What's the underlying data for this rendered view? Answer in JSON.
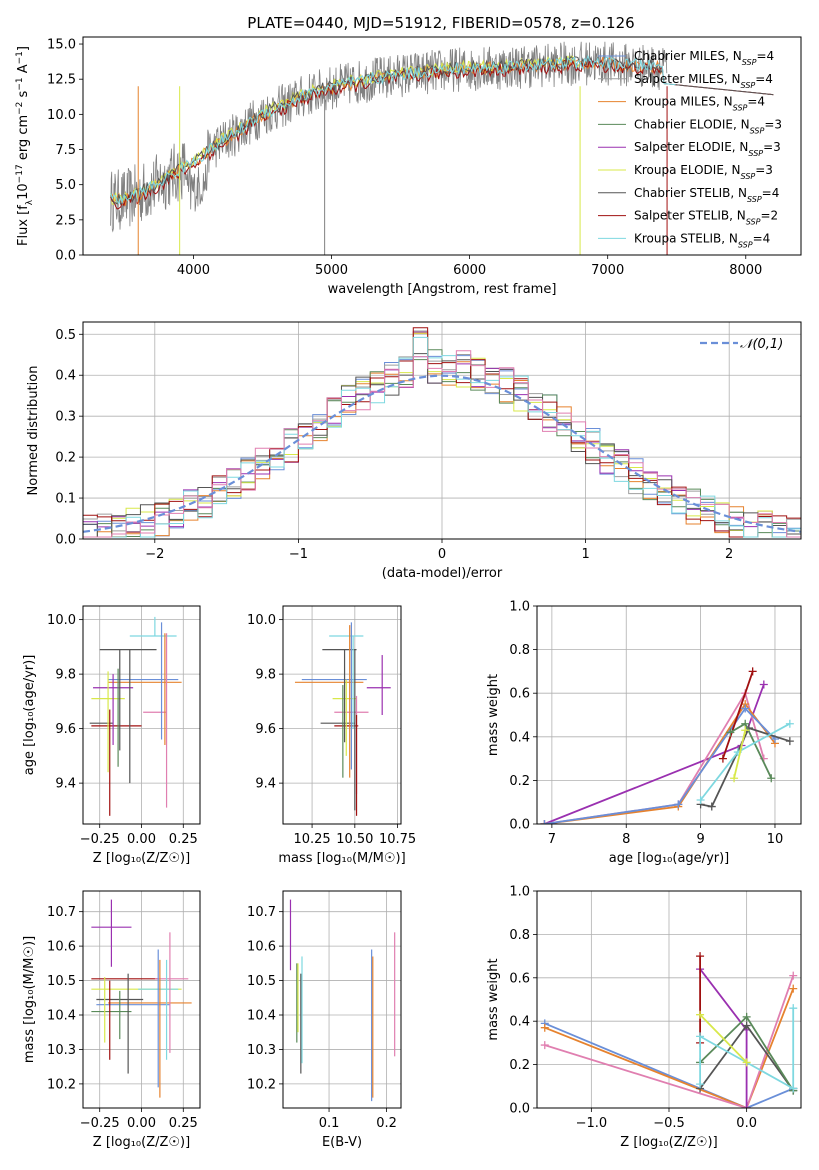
{
  "title": "PLATE=0440, MJD=51912, FIBERID=0578, z=0.126",
  "colors": {
    "chabrier_miles": "#6a8fd8",
    "salpeter_miles": "#9e9e9e",
    "kroupa_miles": "#e6822e",
    "chabrier_elodie": "#5a8a5a",
    "salpeter_elodie": "#9a30b0",
    "kroupa_elodie": "#d8e84a",
    "chabrier_stelib": "#555555",
    "salpeter_stelib": "#a01010",
    "kroupa_stelib": "#7ed8e0",
    "pink": "#e07fb0",
    "normal": "#6a8fd8"
  },
  "chart_data": [
    {
      "type": "line",
      "id": "spectrum",
      "xlabel": "wavelength [Angstrom, rest frame]",
      "ylabel": "Flux [f$_\\lambda$10$^{-17}$ erg cm$^{-2}$ s$^{-1}$ A$^{-1}$]",
      "ylabel_parts": [
        "Flux [f",
        "λ",
        "10",
        "−17",
        " erg cm",
        "−2",
        " s",
        "−1",
        " A",
        "−1",
        "]"
      ],
      "xlim": [
        3200,
        8400
      ],
      "ylim": [
        0,
        15.5
      ],
      "xticks": [
        "4000",
        "5000",
        "6000",
        "7000",
        "8000"
      ],
      "yticks": [
        "0.0",
        "2.5",
        "5.0",
        "7.5",
        "10.0",
        "12.5",
        "15.0"
      ],
      "legend_position": "right",
      "legend": [
        {
          "name": "Chabrier MILES, N",
          "sub": "SSP",
          "tail": "=4",
          "color": "#6a8fd8"
        },
        {
          "name": "Salpeter MILES, N",
          "sub": "SSP",
          "tail": "=4",
          "color": "#9e9e9e"
        },
        {
          "name": "Kroupa MILES, N",
          "sub": "SSP",
          "tail": "=4",
          "color": "#e6822e"
        },
        {
          "name": "Chabrier ELODIE, N",
          "sub": "SSP",
          "tail": "=3",
          "color": "#5a8a5a"
        },
        {
          "name": "Salpeter ELODIE, N",
          "sub": "SSP",
          "tail": "=3",
          "color": "#9a30b0"
        },
        {
          "name": "Kroupa ELODIE, N",
          "sub": "SSP",
          "tail": "=3",
          "color": "#d8e84a"
        },
        {
          "name": "Chabrier STELIB, N",
          "sub": "SSP",
          "tail": "=4",
          "color": "#555555"
        },
        {
          "name": "Salpeter STELIB, N",
          "sub": "SSP",
          "tail": "=2",
          "color": "#a01010"
        },
        {
          "name": "Kroupa STELIB, N",
          "sub": "SSP",
          "tail": "=4",
          "color": "#7ed8e0"
        }
      ],
      "model_x": [
        3400,
        3500,
        3600,
        3700,
        3800,
        3900,
        4000,
        4100,
        4200,
        4300,
        4400,
        4500,
        4600,
        4700,
        4800,
        4900,
        5000,
        5100,
        5200,
        5300,
        5400,
        5500,
        5600,
        5700,
        5800,
        5900,
        6000,
        6100,
        6200,
        6300,
        6400,
        6500,
        6600,
        6700,
        6800,
        6900,
        7000,
        7100,
        7200,
        7300,
        7400
      ],
      "model_y": [
        3.9,
        3.9,
        4.3,
        4.8,
        5.4,
        6.0,
        6.6,
        7.3,
        8.0,
        8.6,
        9.3,
        10.0,
        10.4,
        10.8,
        11.3,
        11.6,
        11.9,
        12.1,
        12.3,
        12.5,
        12.6,
        12.8,
        12.9,
        13.0,
        13.1,
        13.2,
        13.2,
        13.3,
        13.3,
        13.4,
        13.4,
        13.5,
        13.5,
        13.6,
        13.6,
        13.7,
        13.6,
        13.5,
        13.5,
        13.4,
        13.3
      ]
    },
    {
      "type": "histogram",
      "id": "residuals",
      "xlabel": "(data-model)/error",
      "ylabel": "Normed distribution",
      "xlim": [
        -2.5,
        2.5
      ],
      "ylim": [
        0,
        0.53
      ],
      "xticks": [
        "−2",
        "−1",
        "0",
        "1",
        "2"
      ],
      "yticks": [
        "0.0",
        "0.1",
        "0.2",
        "0.3",
        "0.4",
        "0.5"
      ],
      "legend": "𝒩(0,1)",
      "legend_position": "top-right",
      "bin_edges_start": -2.5,
      "bin_width": 0.1
    },
    {
      "type": "errorbar",
      "id": "age_vs_z",
      "xlabel": "Z [log₁₀(Z/Z☉)]",
      "ylabel": "age  [log₁₀(age/yr)]",
      "xlim": [
        -0.35,
        0.35
      ],
      "ylim": [
        9.25,
        10.05
      ],
      "xticks": [
        "−0.25",
        "0.00",
        "0.25"
      ],
      "yticks": [
        "9.4",
        "9.6",
        "9.8",
        "10.0"
      ],
      "points": [
        {
          "x": 0.07,
          "xerr": 0.14,
          "y": 9.94,
          "yerr": 0.0,
          "color": "#7ed8e0"
        },
        {
          "x": -0.08,
          "xerr": 0.17,
          "y": 9.89,
          "yerr": 0.0,
          "color": "#555555"
        },
        {
          "x": 0.01,
          "xerr": 0.21,
          "y": 9.78,
          "yerr": 0.0,
          "color": "#6a8fd8"
        },
        {
          "x": 0.02,
          "xerr": 0.22,
          "y": 9.77,
          "yerr": 0.0,
          "color": "#e6822e"
        },
        {
          "x": -0.17,
          "xerr": 0.12,
          "y": 9.75,
          "yerr": 0.0,
          "color": "#9a30b0"
        },
        {
          "x": -0.2,
          "xerr": 0.1,
          "y": 9.71,
          "yerr": 0.0,
          "color": "#d8e84a"
        },
        {
          "x": 0.08,
          "xerr": 0.07,
          "y": 9.66,
          "yerr": 0.0,
          "color": "#e07fb0"
        },
        {
          "x": -0.24,
          "xerr": 0.07,
          "y": 9.62,
          "yerr": 0.0,
          "color": "#555555"
        },
        {
          "x": -0.15,
          "xerr": 0.15,
          "y": 9.61,
          "yerr": 0.0,
          "color": "#a01010"
        }
      ],
      "vbars": [
        {
          "x": 0.08,
          "y0": 9.94,
          "y1": 10.01,
          "color": "#7ed8e0"
        },
        {
          "x": -0.13,
          "y0": 9.52,
          "y1": 9.89,
          "color": "#555555"
        },
        {
          "x": 0.12,
          "y0": 9.56,
          "y1": 9.99,
          "color": "#6a8fd8"
        },
        {
          "x": 0.14,
          "y0": 9.54,
          "y1": 9.95,
          "color": "#e6822e"
        },
        {
          "x": -0.17,
          "y0": 9.54,
          "y1": 9.8,
          "color": "#9a30b0"
        },
        {
          "x": -0.2,
          "y0": 9.44,
          "y1": 9.81,
          "color": "#d8e84a"
        },
        {
          "x": 0.15,
          "y0": 9.31,
          "y1": 9.95,
          "color": "#e07fb0"
        },
        {
          "x": -0.14,
          "y0": 9.46,
          "y1": 9.82,
          "color": "#5a8a5a"
        },
        {
          "x": -0.07,
          "y0": 9.4,
          "y1": 9.89,
          "color": "#555555"
        },
        {
          "x": -0.19,
          "y0": 9.28,
          "y1": 9.67,
          "color": "#a01010"
        }
      ]
    },
    {
      "type": "errorbar",
      "id": "age_vs_mass",
      "xlabel": "mass [log₁₀(M/M☉)]",
      "ylabel": "",
      "xlim": [
        10.08,
        10.77
      ],
      "ylim": [
        9.25,
        10.05
      ],
      "xticks": [
        "10.25",
        "10.50",
        "10.75"
      ],
      "yticks": [
        "9.4",
        "9.6",
        "9.8",
        "10.0"
      ],
      "points": [
        {
          "x": 10.45,
          "xerr": 0.1,
          "y": 9.94,
          "color": "#7ed8e0"
        },
        {
          "x": 10.41,
          "xerr": 0.1,
          "y": 9.89,
          "color": "#555555"
        },
        {
          "x": 10.38,
          "xerr": 0.19,
          "y": 9.78,
          "color": "#6a8fd8"
        },
        {
          "x": 10.35,
          "xerr": 0.2,
          "y": 9.77,
          "color": "#e6822e"
        },
        {
          "x": 10.64,
          "xerr": 0.07,
          "y": 9.75,
          "color": "#9a30b0"
        },
        {
          "x": 10.44,
          "xerr": 0.07,
          "y": 9.71,
          "color": "#d8e84a"
        },
        {
          "x": 10.48,
          "xerr": 0.1,
          "y": 9.66,
          "color": "#e07fb0"
        },
        {
          "x": 10.4,
          "xerr": 0.1,
          "y": 9.62,
          "color": "#555555"
        },
        {
          "x": 10.45,
          "xerr": 0.07,
          "y": 9.61,
          "color": "#a01010"
        }
      ],
      "vbars": [
        {
          "x": 10.49,
          "y0": 9.6,
          "y1": 9.94,
          "color": "#7ed8e0"
        },
        {
          "x": 10.44,
          "y0": 9.55,
          "y1": 9.89,
          "color": "#555555"
        },
        {
          "x": 10.48,
          "y0": 9.45,
          "y1": 9.99,
          "color": "#6a8fd8"
        },
        {
          "x": 10.47,
          "y0": 9.42,
          "y1": 9.98,
          "color": "#e6822e"
        },
        {
          "x": 10.66,
          "y0": 9.65,
          "y1": 9.87,
          "color": "#9a30b0"
        },
        {
          "x": 10.45,
          "y0": 9.5,
          "y1": 9.78,
          "color": "#d8e84a"
        },
        {
          "x": 10.51,
          "y0": 9.36,
          "y1": 9.72,
          "color": "#e07fb0"
        },
        {
          "x": 10.43,
          "y0": 9.42,
          "y1": 9.76,
          "color": "#5a8a5a"
        },
        {
          "x": 10.5,
          "y0": 9.3,
          "y1": 9.89,
          "color": "#555555"
        },
        {
          "x": 10.51,
          "y0": 9.28,
          "y1": 9.65,
          "color": "#a01010"
        }
      ]
    },
    {
      "type": "line",
      "id": "mass_weight_vs_age",
      "xlabel": "age  [log₁₀(age/yr)]",
      "ylabel": "mass weight",
      "xlim": [
        6.8,
        10.35
      ],
      "ylim": [
        0,
        1
      ],
      "xticks": [
        "7",
        "8",
        "9",
        "10"
      ],
      "yticks": [
        "0.0",
        "0.2",
        "0.4",
        "0.6",
        "0.8",
        "1.0"
      ],
      "series": [
        {
          "color": "#9a30b0",
          "x": [
            6.9,
            9.55,
            9.85
          ],
          "y": [
            0.0,
            0.36,
            0.64
          ]
        },
        {
          "color": "#e07fb0",
          "x": [
            6.9,
            8.7,
            9.6,
            9.85
          ],
          "y": [
            0.0,
            0.09,
            0.6,
            0.3
          ]
        },
        {
          "color": "#e6822e",
          "x": [
            6.9,
            8.7,
            9.6,
            10.0
          ],
          "y": [
            0.0,
            0.08,
            0.55,
            0.37
          ]
        },
        {
          "color": "#6a8fd8",
          "x": [
            6.9,
            8.7,
            9.6,
            10.0
          ],
          "y": [
            0.0,
            0.09,
            0.53,
            0.39
          ]
        },
        {
          "color": "#a01010",
          "x": [
            9.3,
            9.7
          ],
          "y": [
            0.3,
            0.7
          ]
        },
        {
          "color": "#555555",
          "x": [
            9.0,
            9.15,
            9.65,
            10.2
          ],
          "y": [
            0.09,
            0.08,
            0.44,
            0.38
          ]
        },
        {
          "color": "#5a8a5a",
          "x": [
            9.4,
            9.6,
            9.95
          ],
          "y": [
            0.42,
            0.46,
            0.21
          ]
        },
        {
          "color": "#7ed8e0",
          "x": [
            9.0,
            9.5,
            10.2
          ],
          "y": [
            0.11,
            0.33,
            0.46
          ]
        },
        {
          "color": "#d8e84a",
          "x": [
            9.45,
            9.6
          ],
          "y": [
            0.21,
            0.43
          ]
        }
      ]
    },
    {
      "type": "errorbar",
      "id": "mass_vs_z",
      "xlabel": "Z [log₁₀(Z/Z☉)]",
      "ylabel": "mass [log₁₀(M/M☉)]",
      "xlim": [
        -0.35,
        0.35
      ],
      "ylim": [
        10.13,
        10.76
      ],
      "xticks": [
        "−0.25",
        "0.00",
        "0.25"
      ],
      "yticks": [
        "10.2",
        "10.3",
        "10.4",
        "10.5",
        "10.6",
        "10.7"
      ],
      "points": [
        {
          "x": -0.18,
          "xerr": 0.12,
          "y": 10.655,
          "color": "#9a30b0"
        },
        {
          "x": -0.1,
          "xerr": 0.2,
          "y": 10.505,
          "color": "#a01010"
        },
        {
          "x": 0.18,
          "xerr": 0.1,
          "y": 10.505,
          "color": "#e07fb0"
        },
        {
          "x": -0.03,
          "xerr": 0.27,
          "y": 10.475,
          "color": "#d8e84a"
        },
        {
          "x": 0.1,
          "xerr": 0.12,
          "y": 10.475,
          "color": "#7ed8e0"
        },
        {
          "x": -0.13,
          "xerr": 0.14,
          "y": 10.445,
          "color": "#555555"
        },
        {
          "x": 0.05,
          "xerr": 0.25,
          "y": 10.435,
          "color": "#e6822e"
        },
        {
          "x": -0.05,
          "xerr": 0.22,
          "y": 10.43,
          "color": "#6a8fd8"
        },
        {
          "x": -0.18,
          "xerr": 0.12,
          "y": 10.41,
          "color": "#5a8a5a"
        }
      ],
      "vbars": [
        {
          "x": -0.18,
          "y0": 10.54,
          "y1": 10.735,
          "color": "#9a30b0"
        },
        {
          "x": -0.22,
          "y0": 10.32,
          "y1": 10.51,
          "color": "#d8e84a"
        },
        {
          "x": -0.19,
          "y0": 10.27,
          "y1": 10.5,
          "color": "#a01010"
        },
        {
          "x": -0.13,
          "y0": 10.33,
          "y1": 10.47,
          "color": "#5a8a5a"
        },
        {
          "x": -0.08,
          "y0": 10.23,
          "y1": 10.52,
          "color": "#555555"
        },
        {
          "x": 0.1,
          "y0": 10.19,
          "y1": 10.59,
          "color": "#6a8fd8"
        },
        {
          "x": 0.11,
          "y0": 10.16,
          "y1": 10.56,
          "color": "#e6822e"
        },
        {
          "x": 0.15,
          "y0": 10.27,
          "y1": 10.56,
          "color": "#7ed8e0"
        },
        {
          "x": 0.17,
          "y0": 10.29,
          "y1": 10.64,
          "color": "#e07fb0"
        }
      ]
    },
    {
      "type": "errorbar",
      "id": "mass_vs_ebv",
      "xlabel": "E(B-V)",
      "ylabel": "",
      "xlim": [
        0.02,
        0.225
      ],
      "ylim": [
        10.13,
        10.76
      ],
      "xticks": [
        "0.1",
        "0.2"
      ],
      "yticks": [
        "10.2",
        "10.3",
        "10.4",
        "10.5",
        "10.6",
        "10.7"
      ],
      "vbars": [
        {
          "x": 0.033,
          "y0": 10.53,
          "y1": 10.735,
          "color": "#9a30b0"
        },
        {
          "x": 0.044,
          "y0": 10.32,
          "y1": 10.55,
          "color": "#5a8a5a"
        },
        {
          "x": 0.046,
          "y0": 10.35,
          "y1": 10.55,
          "color": "#d8e84a"
        },
        {
          "x": 0.051,
          "y0": 10.23,
          "y1": 10.52,
          "color": "#555555"
        },
        {
          "x": 0.053,
          "y0": 10.26,
          "y1": 10.57,
          "color": "#7ed8e0"
        },
        {
          "x": 0.174,
          "y0": 10.15,
          "y1": 10.59,
          "color": "#6a8fd8"
        },
        {
          "x": 0.176,
          "y0": 10.16,
          "y1": 10.57,
          "color": "#e6822e"
        },
        {
          "x": 0.214,
          "y0": 10.28,
          "y1": 10.64,
          "color": "#e07fb0"
        }
      ]
    },
    {
      "type": "line",
      "id": "mass_weight_vs_z",
      "xlabel": "Z [log₁₀(Z/Z☉)]",
      "ylabel": "mass weight",
      "xlim": [
        -1.35,
        0.35
      ],
      "ylim": [
        0,
        1
      ],
      "xticks": [
        "−1.0",
        "−0.5",
        "0.0"
      ],
      "yticks": [
        "0.0",
        "0.2",
        "0.4",
        "0.6",
        "0.8",
        "1.0"
      ],
      "series": [
        {
          "color": "#6a8fd8",
          "x": [
            -1.3,
            0.0,
            0.3
          ],
          "y": [
            0.39,
            0.0,
            0.09
          ]
        },
        {
          "color": "#e6822e",
          "x": [
            -1.3,
            0.0,
            0.3
          ],
          "y": [
            0.37,
            0.0,
            0.55
          ]
        },
        {
          "color": "#e07fb0",
          "x": [
            -1.3,
            0.0,
            0.3
          ],
          "y": [
            0.29,
            0.0,
            0.61
          ]
        },
        {
          "color": "#9a30b0",
          "x": [
            -0.3,
            0.0,
            0.0
          ],
          "y": [
            0.64,
            0.36,
            0.0
          ]
        },
        {
          "color": "#a01010",
          "x": [
            -0.3,
            -0.3
          ],
          "y": [
            0.3,
            0.7
          ]
        },
        {
          "color": "#555555",
          "x": [
            -0.3,
            0.0,
            0.3,
            0.3
          ],
          "y": [
            0.09,
            0.38,
            0.08,
            0.09
          ]
        },
        {
          "color": "#5a8a5a",
          "x": [
            -0.3,
            0.0,
            0.3
          ],
          "y": [
            0.21,
            0.42,
            0.08
          ]
        },
        {
          "color": "#7ed8e0",
          "x": [
            -0.3,
            -0.3,
            0.3,
            0.3
          ],
          "y": [
            0.11,
            0.33,
            0.09,
            0.46
          ]
        },
        {
          "color": "#d8e84a",
          "x": [
            -0.3,
            0.0
          ],
          "y": [
            0.43,
            0.21
          ]
        }
      ]
    }
  ]
}
